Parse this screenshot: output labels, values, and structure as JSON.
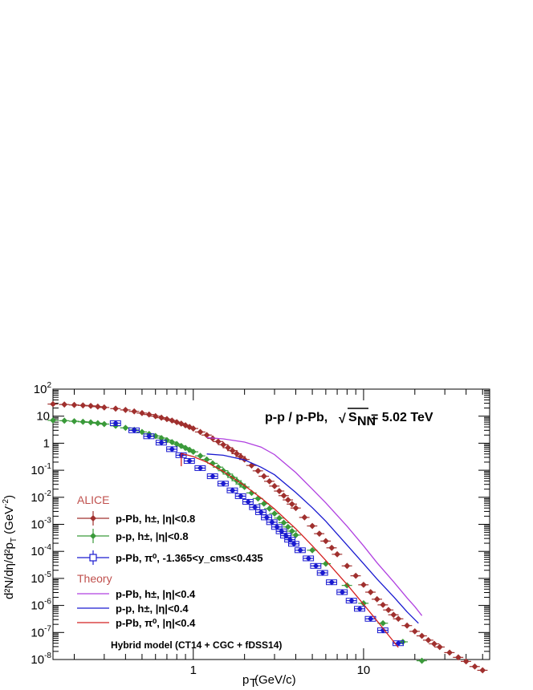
{
  "chart_data": {
    "type": "scatter",
    "title": "p-p / p-Pb,",
    "energy_label": "= 5.02 TeV",
    "sqrt_symbol": "√",
    "sqrt_var": "S",
    "sqrt_sub": "NN",
    "xlabel": "p",
    "xlabel_sub": "T",
    "xlabel_unit": " (GeV/c)",
    "ylabel": "d²N/dη/d²p",
    "ylabel_sub": "T",
    "ylabel_unit": " (GeV",
    "ylabel_exp": "-2",
    "ylabel_close": ")",
    "x_scale": "log",
    "y_scale": "log",
    "xlim": [
      0.15,
      55
    ],
    "ylim": [
      1e-08,
      100
    ],
    "x_ticks": [
      {
        "value": 1,
        "label": "1"
      },
      {
        "value": 10,
        "label": "10"
      }
    ],
    "y_ticks": [
      {
        "value": 100,
        "base": "10",
        "exp": "2"
      },
      {
        "value": 10,
        "base": "10",
        "exp": ""
      },
      {
        "value": 1,
        "base": "1",
        "exp": ""
      },
      {
        "value": 0.1,
        "base": "10",
        "exp": "-1"
      },
      {
        "value": 0.01,
        "base": "10",
        "exp": "-2"
      },
      {
        "value": 0.001,
        "base": "10",
        "exp": "-3"
      },
      {
        "value": 0.0001,
        "base": "10",
        "exp": "-4"
      },
      {
        "value": 1e-05,
        "base": "10",
        "exp": "-5"
      },
      {
        "value": 1e-06,
        "base": "10",
        "exp": "-6"
      },
      {
        "value": 1e-07,
        "base": "10",
        "exp": "-7"
      },
      {
        "value": 1e-08,
        "base": "10",
        "exp": "-8"
      }
    ],
    "legend_alice_header": "ALICE",
    "legend_theory_header": "Theory",
    "footnote": "Hybrid model (CT14 + CGC + fDSS14)",
    "series": [
      {
        "name": "p-Pb, h±, |η|<0.8",
        "group": "ALICE",
        "color": "#a0302e",
        "marker": "diamond",
        "x": [
          0.15,
          0.175,
          0.2,
          0.225,
          0.25,
          0.275,
          0.3,
          0.35,
          0.4,
          0.45,
          0.5,
          0.55,
          0.6,
          0.65,
          0.7,
          0.75,
          0.8,
          0.85,
          0.9,
          0.95,
          1.0,
          1.1,
          1.2,
          1.3,
          1.4,
          1.5,
          1.6,
          1.7,
          1.8,
          1.9,
          2.0,
          2.2,
          2.4,
          2.6,
          2.8,
          3.0,
          3.2,
          3.4,
          3.6,
          3.8,
          4.0,
          4.5,
          5.0,
          5.5,
          6.0,
          6.5,
          7.0,
          8.0,
          9.0,
          10.0,
          11.0,
          12.0,
          13.0,
          14.0,
          15.0,
          16.0,
          18.0,
          20.0,
          22.0,
          24.0,
          26.0,
          28.0,
          32.0,
          36.0,
          40.0,
          45.0,
          50.0
        ],
        "y": [
          28,
          27,
          26,
          25,
          24,
          22.5,
          21,
          19,
          17,
          15,
          13,
          11.5,
          10,
          8.8,
          7.8,
          6.9,
          6.0,
          5.3,
          4.6,
          4.0,
          3.5,
          2.6,
          2.0,
          1.5,
          1.15,
          0.88,
          0.68,
          0.53,
          0.41,
          0.32,
          0.25,
          0.15,
          0.095,
          0.06,
          0.039,
          0.026,
          0.017,
          0.0115,
          0.008,
          0.0056,
          0.004,
          0.0018,
          0.00087,
          0.00045,
          0.00024,
          0.000135,
          7.8e-05,
          2.9e-05,
          1.25e-05,
          5.8e-06,
          3.1e-06,
          1.7e-06,
          1.05e-06,
          6.8e-07,
          4.5e-07,
          3.2e-07,
          1.8e-07,
          1.1e-07,
          7.5e-08,
          5.2e-08,
          3.8e-08,
          2.9e-08,
          1.8e-08,
          1.2e-08,
          8.5e-09,
          5.5e-09,
          4e-09
        ]
      },
      {
        "name": "p-p, h±, |η|<0.8",
        "group": "ALICE",
        "color": "#3a9a3a",
        "marker": "diamond",
        "x": [
          0.15,
          0.175,
          0.2,
          0.225,
          0.25,
          0.275,
          0.3,
          0.35,
          0.4,
          0.45,
          0.5,
          0.55,
          0.6,
          0.65,
          0.7,
          0.75,
          0.8,
          0.85,
          0.9,
          0.95,
          1.0,
          1.1,
          1.2,
          1.3,
          1.4,
          1.5,
          1.6,
          1.7,
          1.8,
          1.9,
          2.0,
          2.2,
          2.4,
          2.6,
          2.8,
          3.0,
          3.2,
          3.4,
          3.6,
          3.8,
          4.0,
          5.0,
          6.0,
          8.0,
          10.0,
          13.0,
          17.0,
          22.0
        ],
        "y": [
          7.0,
          6.8,
          6.5,
          6.2,
          5.9,
          5.5,
          5.1,
          4.4,
          3.7,
          3.1,
          2.6,
          2.2,
          1.85,
          1.55,
          1.3,
          1.1,
          0.93,
          0.79,
          0.67,
          0.57,
          0.48,
          0.34,
          0.25,
          0.18,
          0.13,
          0.096,
          0.072,
          0.054,
          0.041,
          0.031,
          0.024,
          0.0145,
          0.009,
          0.0058,
          0.0038,
          0.0025,
          0.0017,
          0.00115,
          0.0008,
          0.00056,
          0.0004,
          0.00011,
          3.5e-05,
          5.5e-06,
          1.2e-06,
          2.2e-07,
          4.5e-08,
          9e-09
        ]
      },
      {
        "name": "p-Pb, π⁰, -1.365<y_cms<0.435",
        "group": "ALICE",
        "color": "#1a1ad0",
        "marker": "square",
        "x": [
          0.35,
          0.45,
          0.55,
          0.65,
          0.75,
          0.85,
          0.95,
          1.1,
          1.3,
          1.5,
          1.7,
          1.9,
          2.1,
          2.3,
          2.5,
          2.7,
          2.9,
          3.1,
          3.3,
          3.5,
          3.7,
          3.9,
          4.25,
          4.75,
          5.25,
          5.75,
          6.5,
          7.5,
          8.5,
          9.5,
          11.0,
          13.0,
          16.0
        ],
        "y": [
          5.5,
          3.0,
          1.8,
          1.05,
          0.6,
          0.36,
          0.22,
          0.12,
          0.06,
          0.032,
          0.018,
          0.011,
          0.0068,
          0.0043,
          0.0028,
          0.0018,
          0.0012,
          0.0008,
          0.00055,
          0.00038,
          0.00027,
          0.00019,
          0.00011,
          5.5e-05,
          2.9e-05,
          1.6e-05,
          7.2e-06,
          3.1e-06,
          1.5e-06,
          7.5e-07,
          3.2e-07,
          1.2e-07,
          4e-08
        ]
      },
      {
        "name": "p-Pb, h±, |η|<0.4",
        "group": "Theory",
        "color": "#b040e0",
        "marker": "line",
        "x": [
          1.2,
          1.5,
          2.0,
          2.5,
          3.0,
          4.0,
          5.0,
          6.0,
          8.0,
          10.0,
          12.0,
          15.0,
          18.0,
          20.0,
          22.0
        ],
        "y": [
          1.6,
          1.45,
          1.1,
          0.72,
          0.38,
          0.082,
          0.02,
          0.0062,
          0.00085,
          0.00016,
          3.8e-05,
          7.5e-06,
          1.9e-06,
          9e-07,
          4.2e-07
        ]
      },
      {
        "name": "p-p, h±, |η|<0.4",
        "group": "Theory",
        "color": "#1a1ad0",
        "marker": "line",
        "x": [
          1.2,
          1.5,
          2.0,
          2.5,
          3.0,
          4.0,
          5.0,
          6.0,
          8.0,
          10.0,
          12.0,
          15.0,
          18.0,
          21.0
        ],
        "y": [
          0.4,
          0.36,
          0.24,
          0.13,
          0.068,
          0.015,
          0.0041,
          0.0013,
          0.00017,
          3.5e-05,
          9.5e-06,
          2.1e-06,
          5.8e-07,
          2.2e-07
        ]
      },
      {
        "name": "p-Pb, π⁰, |η|<0.4",
        "group": "Theory",
        "color": "#d42020",
        "marker": "line",
        "x": [
          0.85,
          1.0,
          1.2,
          1.5,
          2.0,
          2.5,
          3.0,
          4.0,
          5.0,
          6.0,
          8.0,
          10.0,
          12.0,
          14.0,
          16.0
        ],
        "y": [
          0.42,
          0.32,
          0.2,
          0.09,
          0.027,
          0.0095,
          0.0037,
          0.00068,
          0.00016,
          4.6e-05,
          5.9e-06,
          1.1e-06,
          2.7e-07,
          8e-08,
          2.8e-08
        ]
      }
    ]
  }
}
